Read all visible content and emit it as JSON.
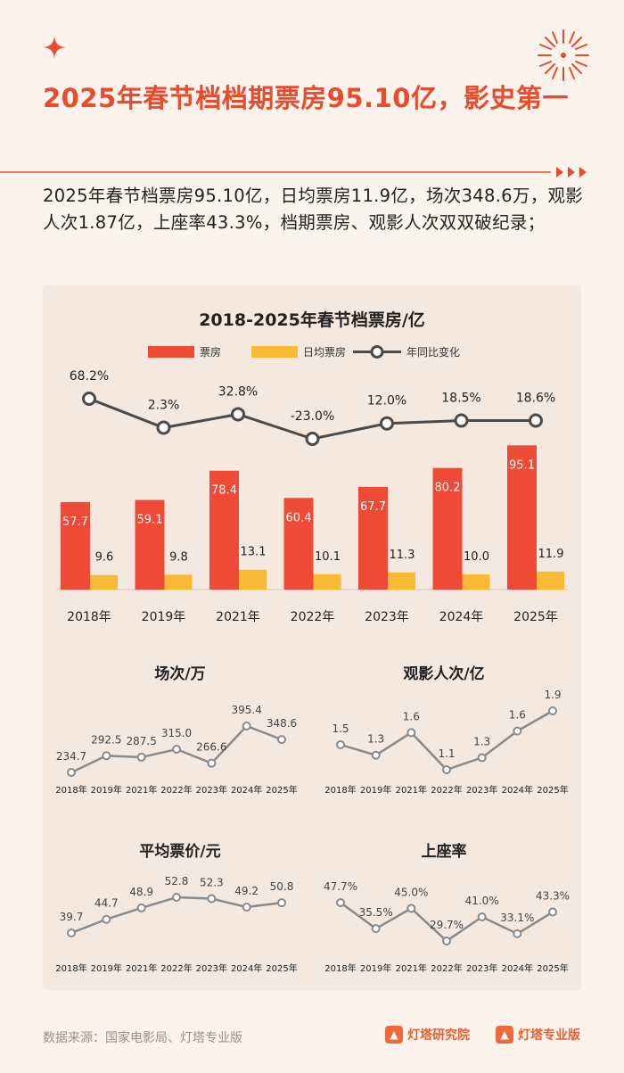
{
  "title": "2025年春节档档期票房95.10亿，影史第一",
  "summary": "2025年春节档票房95.10亿，日均票房11.9亿，场次348.6万，观影人次1.87亿，上座率43.3%，档期票房、观影人次双双破纪录；",
  "colors": {
    "accent": "#e84c2f",
    "box": "#ef4a35",
    "daily": "#f8b935",
    "line": "#4a4a4a",
    "small": "#8a8a8a"
  },
  "main_chart": {
    "title": "2018-2025年春节档票房/亿",
    "legend": [
      "票房",
      "日均票房",
      "年同比变化"
    ]
  },
  "chart_data": [
    {
      "type": "bar",
      "title": "2018-2025年春节档票房/亿",
      "categories": [
        "2018年",
        "2019年",
        "2021年",
        "2022年",
        "2023年",
        "2024年",
        "2025年"
      ],
      "series": [
        {
          "name": "票房",
          "values": [
            57.7,
            59.1,
            78.4,
            60.4,
            67.7,
            80.2,
            95.1
          ],
          "labels": [
            "57.7",
            "59.1",
            "78.4",
            "60.4",
            "67.7",
            "80.2",
            "95.1"
          ]
        },
        {
          "name": "日均票房",
          "values": [
            9.6,
            9.8,
            13.1,
            10.1,
            11.3,
            10.0,
            11.9
          ],
          "labels": [
            "9.6",
            "9.8",
            "13.1",
            "10.1",
            "11.3",
            "10.0",
            "11.9"
          ]
        },
        {
          "name": "年同比变化",
          "type": "line",
          "values": [
            68.2,
            2.3,
            32.8,
            -23.0,
            12.0,
            18.5,
            18.6
          ],
          "labels": [
            "68.2%",
            "2.3%",
            "32.8%",
            "-23.0%",
            "12.0%",
            "18.5%",
            "18.6%"
          ]
        }
      ],
      "ylim": [
        0,
        100
      ]
    },
    {
      "type": "line",
      "title": "场次/万",
      "categories": [
        "2018年",
        "2019年",
        "2021年",
        "2022年",
        "2023年",
        "2024年",
        "2025年"
      ],
      "values": [
        234.7,
        292.5,
        287.5,
        315.0,
        266.6,
        395.4,
        348.6
      ],
      "labels": [
        "234.7",
        "292.5",
        "287.5",
        "315.0",
        "266.6",
        "395.4",
        "348.6"
      ]
    },
    {
      "type": "line",
      "title": "观影人次/亿",
      "categories": [
        "2018年",
        "2019年",
        "2021年",
        "2022年",
        "2023年",
        "2024年",
        "2025年"
      ],
      "values": [
        1.45,
        1.32,
        1.6,
        1.14,
        1.29,
        1.62,
        1.87
      ],
      "labels": [
        "1.5",
        "1.3",
        "1.6",
        "1.1",
        "1.3",
        "1.6",
        "1.9"
      ]
    },
    {
      "type": "line",
      "title": "平均票价/元",
      "categories": [
        "2018年",
        "2019年",
        "2021年",
        "2022年",
        "2023年",
        "2024年",
        "2025年"
      ],
      "values": [
        39.7,
        44.7,
        48.9,
        52.8,
        52.3,
        49.2,
        50.8
      ],
      "labels": [
        "39.7",
        "44.7",
        "48.9",
        "52.8",
        "52.3",
        "49.2",
        "50.8"
      ]
    },
    {
      "type": "line",
      "title": "上座率",
      "categories": [
        "2018年",
        "2019年",
        "2021年",
        "2022年",
        "2023年",
        "2024年",
        "2025年"
      ],
      "values": [
        47.7,
        35.5,
        45.0,
        29.7,
        41.0,
        33.1,
        43.3
      ],
      "labels": [
        "47.7%",
        "35.5%",
        "45.0%",
        "29.7%",
        "41.0%",
        "33.1%",
        "43.3%"
      ]
    }
  ],
  "footer": {
    "source": "数据来源：国家电影局、灯塔专业版",
    "logo1": "灯塔研究院",
    "logo2": "灯塔专业版"
  }
}
